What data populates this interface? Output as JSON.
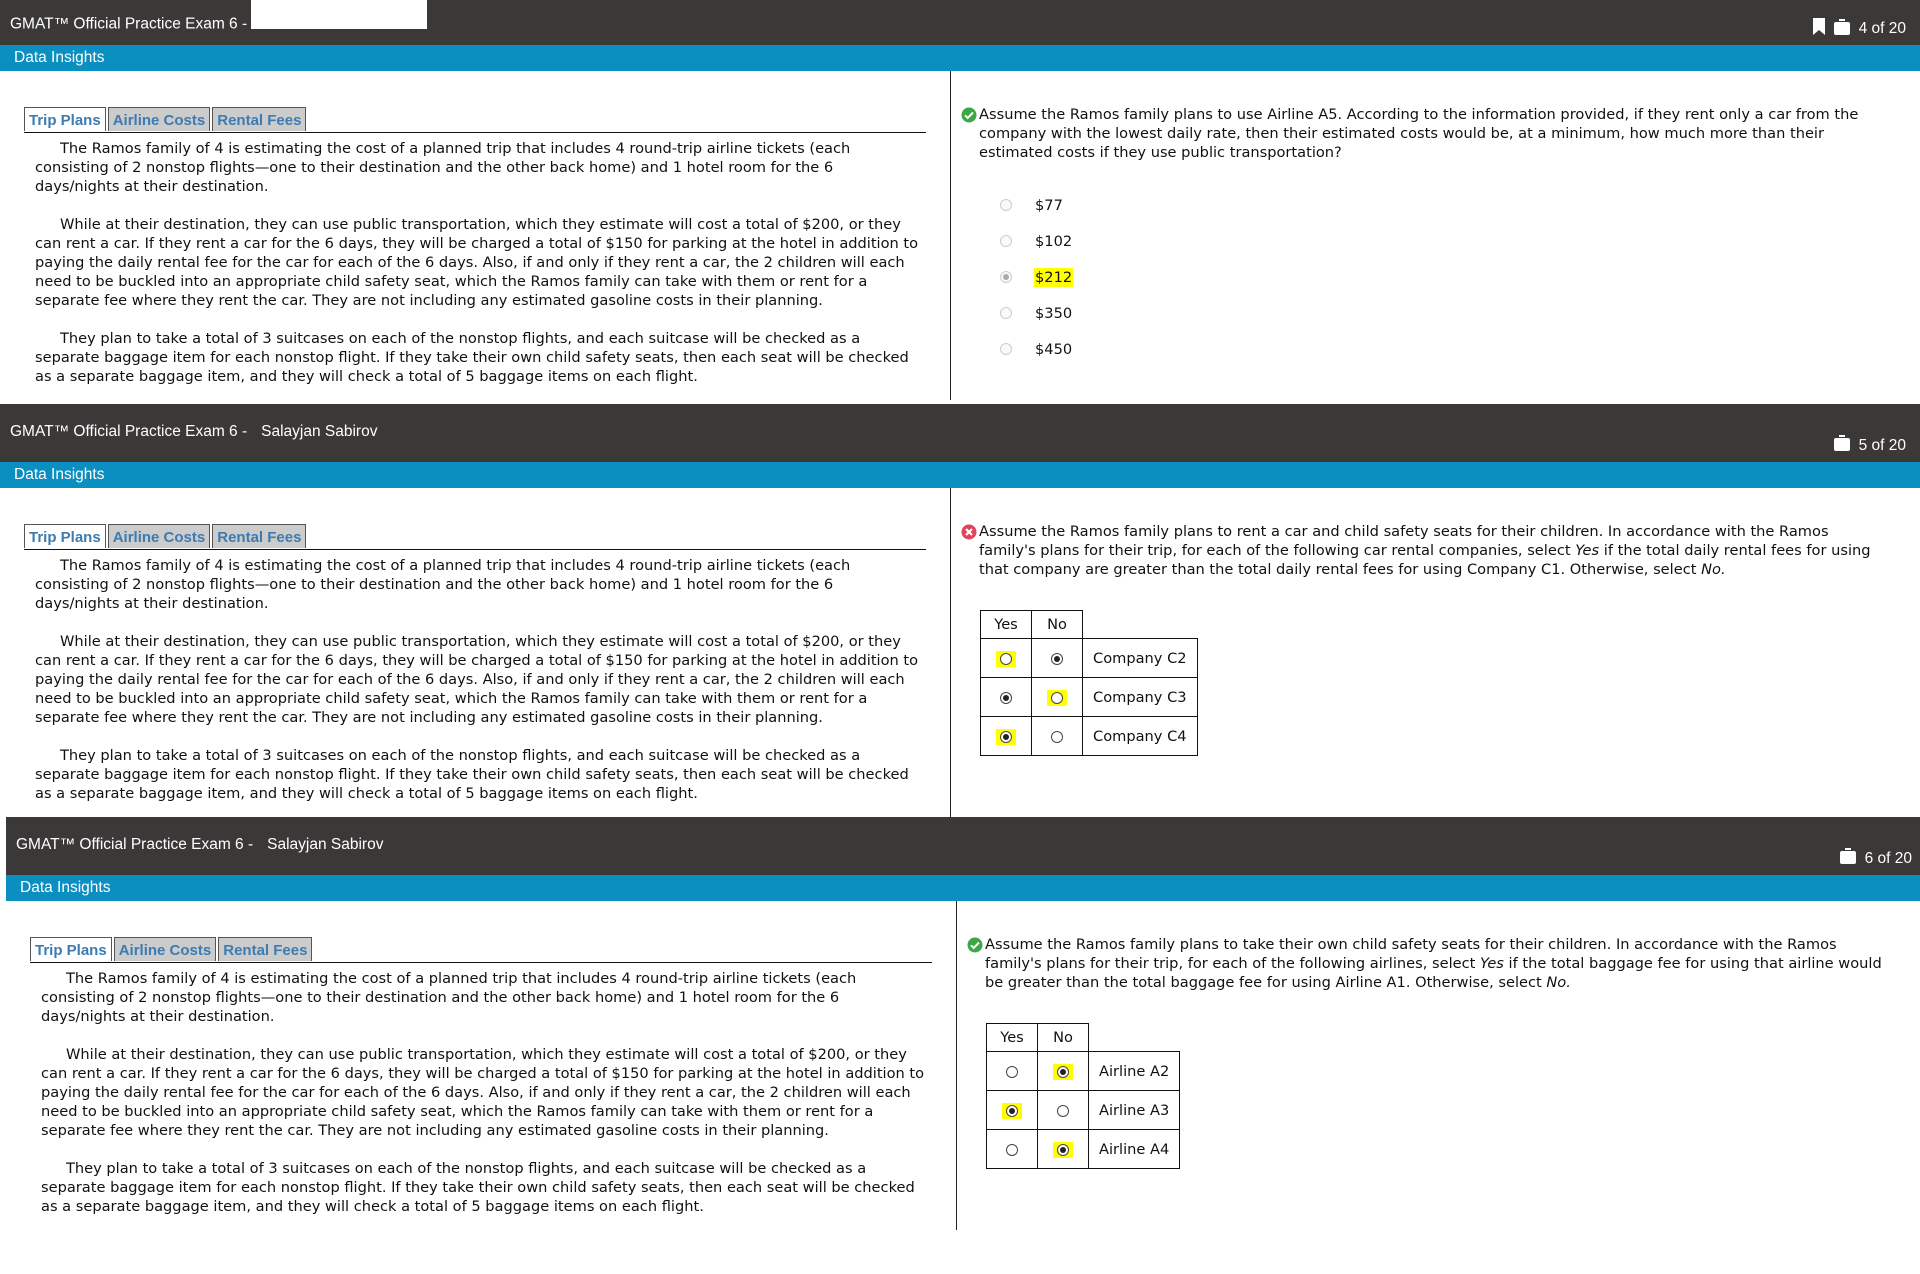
{
  "colors": {
    "header": "#3b3838",
    "section_bar": "#0b8ec0",
    "tab_text": "#3d7bb0",
    "highlight": "#ffff00",
    "correct": "#3aa843",
    "incorrect": "#e0445a"
  },
  "common": {
    "exam_title": "GMAT™ Official Practice Exam 6 -",
    "section_name": "Data Insights",
    "tabs": [
      "Trip Plans",
      "Airline Costs",
      "Rental Fees"
    ],
    "active_tab": "Trip Plans",
    "passage": [
      "The Ramos family of 4 is estimating the cost of a planned trip that includes 4 round-trip airline tickets (each consisting of 2 nonstop flights—one to their destination and the other back home) and 1 hotel room for the 6 days/nights at their destination.",
      "While at their destination, they can use public transportation, which they estimate will cost a total of $200, or they can rent a car. If they rent a car for the 6 days, they will be charged a total of $150 for parking at the hotel in addition to paying the daily rental fee for the car for each of the 6 days. Also, if and only if they rent a car, the 2 children will each need to be buckled into an appropriate child safety seat, which the Ramos family can take with them or rent for a separate fee where they rent the car. They are not including any estimated gasoline costs in their planning.",
      "They plan to take a total of 3 suitcases on each of the nonstop flights, and each suitcase will be checked as a separate baggage item for each nonstop flight. If they take their own child safety seats, then each seat will be checked as a separate baggage item, and they will check a total of 5 baggage items on each flight."
    ]
  },
  "screens": [
    {
      "candidate_name": "",
      "name_redacted": true,
      "bookmark_icon": true,
      "counter": "4 of 20",
      "status": "correct",
      "question_parts": [
        "Assume the Ramos family plans to use Airline A5. According to the information provided, if they rent only a car from the company with the lowest daily rate, then their estimated costs would be, at a minimum, how much more than their estimated costs if they use public transportation?"
      ],
      "options": [
        {
          "label": "$77",
          "selected": false,
          "highlight": false
        },
        {
          "label": "$102",
          "selected": false,
          "highlight": false
        },
        {
          "label": "$212",
          "selected": true,
          "highlight": true
        },
        {
          "label": "$350",
          "selected": false,
          "highlight": false
        },
        {
          "label": "$450",
          "selected": false,
          "highlight": false
        }
      ]
    },
    {
      "candidate_name": "Salayjan Sabirov",
      "name_redacted": false,
      "bookmark_icon": false,
      "counter": "5 of 20",
      "status": "incorrect",
      "question_parts": [
        "Assume the Ramos family plans to rent a car and child safety seats for their children. In accordance with the Ramos family's plans for their trip, for each of the following car rental companies, select ",
        "Yes",
        " if the total daily rental fees for using that company are greater than the total daily rental fees for using Company C1. Otherwise, select ",
        "No."
      ],
      "table": {
        "headers": [
          "Yes",
          "No"
        ],
        "rows": [
          {
            "label": "Company C2",
            "selected": "No",
            "highlight": "Yes"
          },
          {
            "label": "Company C3",
            "selected": "Yes",
            "highlight": "No"
          },
          {
            "label": "Company C4",
            "selected": "Yes",
            "highlight": "Yes"
          }
        ]
      }
    },
    {
      "candidate_name": "Salayjan Sabirov",
      "name_redacted": false,
      "bookmark_icon": false,
      "counter": "6 of 20",
      "status": "correct",
      "question_parts": [
        "Assume the Ramos family plans to take their own child safety seats for their children. In accordance with the Ramos family's plans for their trip, for each of the following airlines, select ",
        "Yes",
        " if the total baggage fee for using that airline would be greater than the total baggage fee for using Airline A1. Otherwise, select ",
        "No."
      ],
      "table": {
        "headers": [
          "Yes",
          "No"
        ],
        "rows": [
          {
            "label": "Airline A2",
            "selected": "No",
            "highlight": "No"
          },
          {
            "label": "Airline A3",
            "selected": "Yes",
            "highlight": "Yes"
          },
          {
            "label": "Airline A4",
            "selected": "No",
            "highlight": "No"
          }
        ]
      }
    }
  ]
}
